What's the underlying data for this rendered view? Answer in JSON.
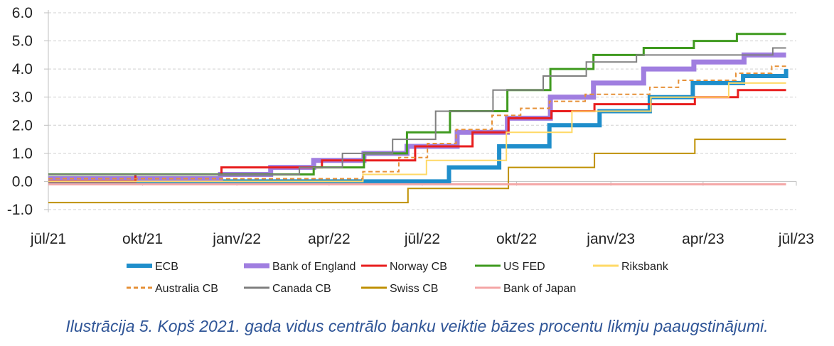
{
  "chart_data": {
    "type": "line",
    "step": true,
    "title": "",
    "xlabel": "",
    "ylabel": "",
    "ylim": [
      -1.0,
      6.0
    ],
    "yticks": [
      "6.0",
      "5.0",
      "4.0",
      "3.0",
      "2.0",
      "1.0",
      "0.0",
      "-1.0"
    ],
    "xlim": [
      "2021-07-01",
      "2023-07-01"
    ],
    "xticks": [
      {
        "date": "2021-07-01",
        "label": "jūl/21"
      },
      {
        "date": "2021-10-01",
        "label": "okt/21"
      },
      {
        "date": "2022-01-01",
        "label": "janv/22"
      },
      {
        "date": "2022-04-01",
        "label": "apr/22"
      },
      {
        "date": "2022-07-01",
        "label": "jūl/22"
      },
      {
        "date": "2022-10-01",
        "label": "okt/22"
      },
      {
        "date": "2023-01-01",
        "label": "janv/23"
      },
      {
        "date": "2023-04-01",
        "label": "apr/23"
      },
      {
        "date": "2023-07-01",
        "label": "jūl/23"
      }
    ],
    "grid": "horizontal-dashed",
    "legend_position": "bottom",
    "series": [
      {
        "name": "ECB",
        "color": "#1f8ecb",
        "width": 6,
        "dash": "",
        "points": [
          [
            "2021-07-01",
            0
          ],
          [
            "2022-07-27",
            0.5
          ],
          [
            "2022-09-14",
            1.25
          ],
          [
            "2022-11-02",
            2.0
          ],
          [
            "2022-12-21",
            2.5
          ],
          [
            "2023-02-08",
            3.0
          ],
          [
            "2023-03-22",
            3.5
          ],
          [
            "2023-05-10",
            3.75
          ],
          [
            "2023-06-21",
            4.0
          ]
        ]
      },
      {
        "name": "Bank of England",
        "color": "#a07ee0",
        "width": 7,
        "dash": "",
        "points": [
          [
            "2021-07-01",
            0.1
          ],
          [
            "2021-12-16",
            0.25
          ],
          [
            "2022-02-03",
            0.5
          ],
          [
            "2022-03-17",
            0.75
          ],
          [
            "2022-05-05",
            1.0
          ],
          [
            "2022-06-16",
            1.25
          ],
          [
            "2022-08-04",
            1.75
          ],
          [
            "2022-09-22",
            2.25
          ],
          [
            "2022-11-03",
            3.0
          ],
          [
            "2022-12-15",
            3.5
          ],
          [
            "2023-02-02",
            4.0
          ],
          [
            "2023-03-23",
            4.25
          ],
          [
            "2023-05-11",
            4.5
          ]
        ]
      },
      {
        "name": "Norway CB",
        "color": "#e81e1e",
        "width": 3,
        "dash": "",
        "points": [
          [
            "2021-07-01",
            0
          ],
          [
            "2021-09-24",
            0.25
          ],
          [
            "2021-12-17",
            0.5
          ],
          [
            "2022-03-25",
            0.75
          ],
          [
            "2022-05-05",
            0.75
          ],
          [
            "2022-06-24",
            1.25
          ],
          [
            "2022-08-19",
            1.75
          ],
          [
            "2022-09-23",
            2.25
          ],
          [
            "2022-11-04",
            2.5
          ],
          [
            "2022-12-16",
            2.75
          ],
          [
            "2023-03-24",
            3.0
          ],
          [
            "2023-05-05",
            3.25
          ]
        ]
      },
      {
        "name": "US FED",
        "color": "#3f9a1f",
        "width": 3,
        "dash": "",
        "points": [
          [
            "2021-07-01",
            0.25
          ],
          [
            "2022-03-17",
            0.5
          ],
          [
            "2022-05-05",
            1.0
          ],
          [
            "2022-06-16",
            1.75
          ],
          [
            "2022-07-28",
            2.5
          ],
          [
            "2022-09-22",
            3.25
          ],
          [
            "2022-11-03",
            4.0
          ],
          [
            "2022-12-15",
            4.5
          ],
          [
            "2023-02-02",
            4.75
          ],
          [
            "2023-03-23",
            5.0
          ],
          [
            "2023-05-04",
            5.25
          ]
        ]
      },
      {
        "name": "Riksbank",
        "color": "#ffd966",
        "width": 2,
        "dash": "",
        "points": [
          [
            "2021-07-01",
            0
          ],
          [
            "2022-05-04",
            0.25
          ],
          [
            "2022-07-05",
            0.75
          ],
          [
            "2022-09-21",
            1.75
          ],
          [
            "2022-11-24",
            2.5
          ],
          [
            "2023-02-09",
            3.0
          ],
          [
            "2023-04-26",
            3.5
          ]
        ]
      },
      {
        "name": "Australia CB",
        "color": "#e69138",
        "width": 2,
        "dash": "6,4",
        "points": [
          [
            "2021-07-01",
            0.1
          ],
          [
            "2022-05-04",
            0.35
          ],
          [
            "2022-06-08",
            0.85
          ],
          [
            "2022-07-06",
            1.35
          ],
          [
            "2022-08-03",
            1.85
          ],
          [
            "2022-09-07",
            2.35
          ],
          [
            "2022-10-05",
            2.6
          ],
          [
            "2022-11-02",
            2.85
          ],
          [
            "2022-12-07",
            3.1
          ],
          [
            "2023-02-08",
            3.35
          ],
          [
            "2023-03-08",
            3.6
          ],
          [
            "2023-05-03",
            3.85
          ],
          [
            "2023-06-07",
            4.1
          ]
        ]
      },
      {
        "name": "Canada CB",
        "color": "#7f7f7f",
        "width": 2,
        "dash": "",
        "points": [
          [
            "2021-07-01",
            0.25
          ],
          [
            "2022-03-03",
            0.5
          ],
          [
            "2022-04-14",
            1.0
          ],
          [
            "2022-06-02",
            1.5
          ],
          [
            "2022-07-14",
            2.5
          ],
          [
            "2022-09-08",
            3.25
          ],
          [
            "2022-10-27",
            3.75
          ],
          [
            "2022-12-08",
            4.25
          ],
          [
            "2023-01-26",
            4.5
          ],
          [
            "2023-06-08",
            4.75
          ]
        ]
      },
      {
        "name": "Swiss CB",
        "color": "#bf9000",
        "width": 2,
        "dash": "",
        "points": [
          [
            "2021-07-01",
            -0.75
          ],
          [
            "2022-06-17",
            -0.25
          ],
          [
            "2022-09-23",
            0.5
          ],
          [
            "2022-12-16",
            1.0
          ],
          [
            "2023-03-24",
            1.5
          ]
        ]
      },
      {
        "name": "Bank of Japan",
        "color": "#f4a6a6",
        "width": 3,
        "dash": "",
        "points": [
          [
            "2021-07-01",
            -0.1
          ],
          [
            "2023-06-21",
            -0.1
          ]
        ]
      }
    ],
    "legend_rows": [
      [
        "ECB",
        "Bank of England",
        "Norway CB",
        "US FED",
        "Riksbank"
      ],
      [
        "Australia CB",
        "Canada CB",
        "Swiss CB",
        "Bank of Japan"
      ]
    ]
  },
  "caption": "Ilustrācija 5. Kopš 2021. gada vidus centrālo banku veiktie bāzes procentu likmju paaugstinājumi."
}
